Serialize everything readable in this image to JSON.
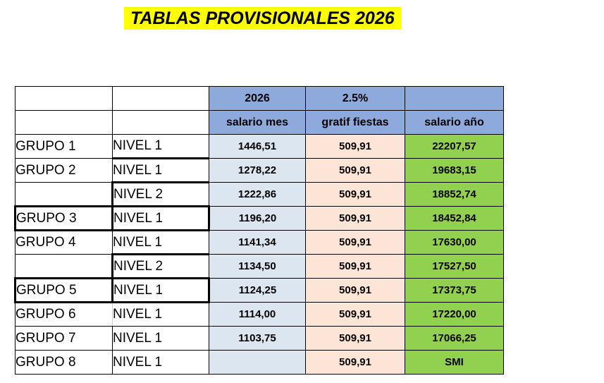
{
  "title": "TABLAS PROVISIONALES 2026",
  "colors": {
    "title_highlight": "#FFFF00",
    "header_blue": "#8EA9DB",
    "salario_mes_bg": "#DCE6F1",
    "gratif_fiestas_bg": "#FCE4D6",
    "salario_ano_bg": "#92D050"
  },
  "table": {
    "top_header": [
      "",
      "",
      "2026",
      "2.5%",
      ""
    ],
    "column_header": [
      "",
      "",
      "salario mes",
      "gratif fiestas",
      "salario año"
    ],
    "rows": [
      [
        "GRUPO 1",
        "NIVEL 1",
        "1446,51",
        "509,91",
        "22207,57"
      ],
      [
        "GRUPO 2",
        "NIVEL 1",
        "1278,22",
        "509,91",
        "19683,15"
      ],
      [
        "",
        "NIVEL 2",
        "1222,86",
        "509,91",
        "18852,74"
      ],
      [
        "GRUPO 3",
        "NIVEL 1",
        "1196,20",
        "509,91",
        "18452,84"
      ],
      [
        "GRUPO 4",
        "NIVEL 1",
        "1141,34",
        "509,91",
        "17630,00"
      ],
      [
        "",
        "NIVEL 2",
        "1134,50",
        "509,91",
        "17527,50"
      ],
      [
        "GRUPO 5",
        "NIVEL 1",
        "1124,25",
        "509,91",
        "17373,75"
      ],
      [
        "GRUPO 6",
        "NIVEL 1",
        "1114,00",
        "509,91",
        "17220,00"
      ],
      [
        "GRUPO 7",
        "NIVEL 1",
        "1103,75",
        "509,91",
        "17066,25"
      ],
      [
        "GRUPO 8",
        "NIVEL 1",
        "",
        "509,91",
        "SMI"
      ]
    ]
  }
}
